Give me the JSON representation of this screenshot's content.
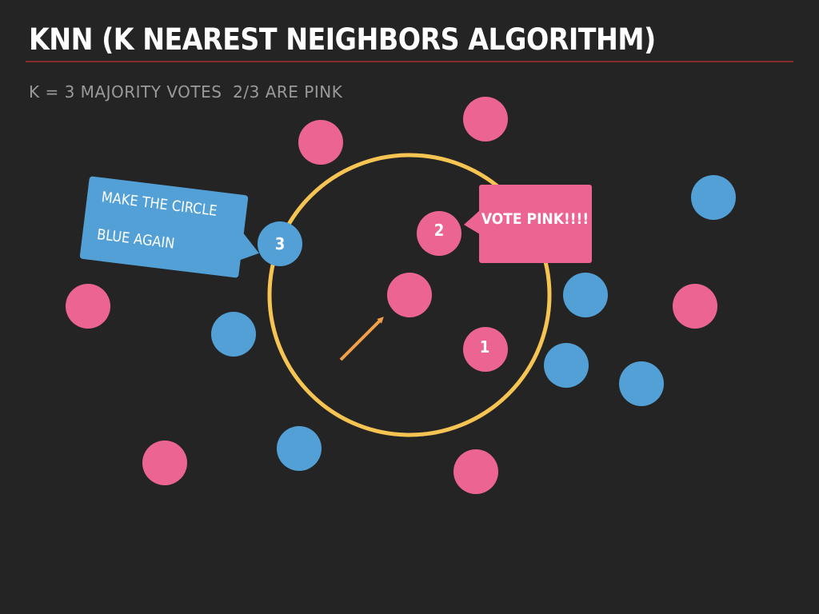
{
  "slide": {
    "title": "KNN (K NEAREST NEIGHBORS ALGORITHM)",
    "subtitle": "K = 3 MAJORITY VOTES  2/3 ARE PINK"
  },
  "colors": {
    "background": "#242424",
    "pink": "#ec6592",
    "blue": "#52a0d6",
    "circle": "#f6c453",
    "arrow": "#f3a04a",
    "rule": "#8a2b2b"
  },
  "neighbors": {
    "one": "1",
    "two": "2",
    "three": "3"
  },
  "callouts": {
    "blue_line1": "MAKE THE CIRCLE",
    "blue_line2": "BLUE AGAIN",
    "pink": "VOTE PINK!!!!"
  }
}
